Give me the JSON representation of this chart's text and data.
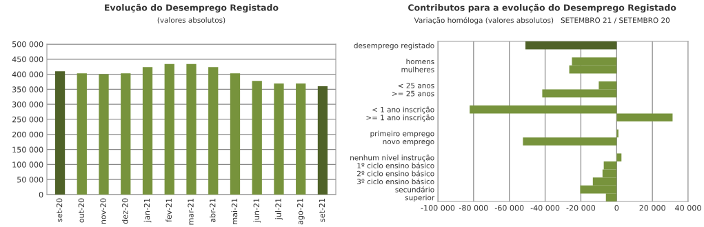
{
  "chart_data": [
    {
      "type": "bar",
      "title": "Evolução do Desemprego Registado",
      "subtitle": "(valores absolutos)",
      "categories": [
        "set-20",
        "out-20",
        "nov-20",
        "dez-20",
        "jan-21",
        "fev-21",
        "mar-21",
        "abr-21",
        "mai-21",
        "jun-21",
        "jul-21",
        "ago-21",
        "set-21"
      ],
      "values": [
        410000,
        403000,
        400000,
        403000,
        424000,
        434000,
        434000,
        424000,
        403000,
        378000,
        369000,
        369000,
        360000
      ],
      "colors": [
        "#4f6228",
        "#77933c",
        "#77933c",
        "#77933c",
        "#77933c",
        "#77933c",
        "#77933c",
        "#77933c",
        "#77933c",
        "#77933c",
        "#77933c",
        "#77933c",
        "#4f6228"
      ],
      "ylim": [
        0,
        500000
      ],
      "yticks": [
        0,
        {
          "value": 50000,
          "label": "50 000"
        },
        {
          "value": 100000,
          "label": "100 000"
        },
        {
          "value": 150000,
          "label": "150 000"
        },
        {
          "value": 200000,
          "label": "200 000"
        },
        {
          "value": 250000,
          "label": "250 000"
        },
        {
          "value": 300000,
          "label": "300 000"
        },
        {
          "value": 350000,
          "label": "350 000"
        },
        {
          "value": 400000,
          "label": "400 000"
        },
        {
          "value": 450000,
          "label": "450 000"
        },
        {
          "value": 500000,
          "label": "500 000"
        }
      ],
      "grid": "y"
    },
    {
      "type": "bar",
      "orientation": "horizontal",
      "title": "Contributos para a evolução do Desemprego Registado",
      "subtitle": "Variação homóloga (valores absolutos)   SETEMBRO 21 / SETEMBRO 20",
      "categories": [
        "desemprego registado",
        null,
        "homens",
        "mulheres",
        null,
        "< 25 anos",
        ">= 25 anos",
        null,
        "< 1 ano inscrição",
        ">= 1 ano inscrição",
        null,
        "primeiro emprego",
        "novo emprego",
        null,
        "nenhum nível instrução",
        "1º ciclo ensino básico",
        "2º ciclo ensino básico",
        "3º ciclo ensino básico",
        "secundário",
        "superior"
      ],
      "values": [
        -51000,
        null,
        -25000,
        -26500,
        null,
        -10000,
        -41600,
        null,
        -82200,
        31300,
        null,
        1000,
        -52400,
        null,
        2700,
        -7200,
        -7900,
        -13300,
        -20400,
        -6000
      ],
      "colors": [
        "#4f6228",
        null,
        "#77933c",
        "#77933c",
        null,
        "#77933c",
        "#77933c",
        null,
        "#77933c",
        "#77933c",
        null,
        "#77933c",
        "#77933c",
        null,
        "#77933c",
        "#77933c",
        "#77933c",
        "#77933c",
        "#77933c",
        "#77933c"
      ],
      "xlim": [
        -100000,
        40000
      ],
      "xticks": [
        {
          "value": -100000,
          "label": "-100 000"
        },
        {
          "value": -80000,
          "label": "-80 000"
        },
        {
          "value": -60000,
          "label": "-60 000"
        },
        {
          "value": -40000,
          "label": "-40 000"
        },
        {
          "value": -20000,
          "label": "-20 000"
        },
        0,
        {
          "value": 20000,
          "label": "20 000"
        },
        {
          "value": 40000,
          "label": "40 000"
        }
      ],
      "grid": "x"
    }
  ]
}
